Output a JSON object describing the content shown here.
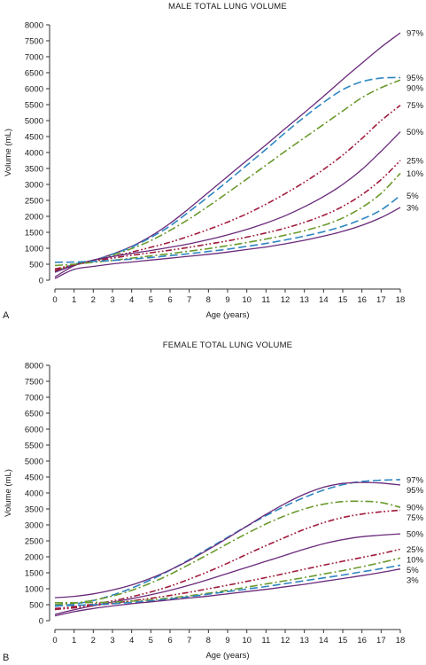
{
  "colors": {
    "solid": "#6a2a7a",
    "blue": "#2e86c1",
    "green": "#6b9a2e",
    "red": "#a01c3c",
    "axis": "#333333"
  },
  "chart_data": [
    {
      "type": "line",
      "panel_label": "A",
      "title": "MALE TOTAL LUNG VOLUME",
      "xlabel": "Age (years)",
      "ylabel": "Volume (mL)",
      "xlim": [
        0,
        18
      ],
      "ylim": [
        0,
        8000
      ],
      "xticks": [
        "0",
        "1",
        "2",
        "3",
        "4",
        "5",
        "6",
        "7",
        "8",
        "9",
        "10",
        "11",
        "12",
        "13",
        "14",
        "15",
        "16",
        "17",
        "18"
      ],
      "yticks": [
        "0",
        "500",
        "1000",
        "1500",
        "2000",
        "2500",
        "3000",
        "3500",
        "4000",
        "4500",
        "5000",
        "5500",
        "6000",
        "6500",
        "7000",
        "7500",
        "8000"
      ],
      "grid": false,
      "x": [
        0,
        1,
        2,
        3,
        4,
        5,
        6,
        7,
        8,
        9,
        10,
        11,
        12,
        13,
        14,
        15,
        16,
        17,
        18
      ],
      "series": [
        {
          "name": "97%",
          "style": "solid",
          "color": "solid",
          "values": [
            100,
            450,
            620,
            820,
            1060,
            1380,
            1780,
            2250,
            2750,
            3250,
            3750,
            4240,
            4750,
            5250,
            5760,
            6290,
            6800,
            7300,
            7750
          ]
        },
        {
          "name": "95%",
          "style": "dash",
          "color": "blue",
          "values": [
            250,
            500,
            620,
            810,
            1040,
            1340,
            1700,
            2150,
            2620,
            3100,
            3600,
            4100,
            4620,
            5110,
            5570,
            5970,
            6220,
            6330,
            6350
          ]
        },
        {
          "name": "90%",
          "style": "dashdot",
          "color": "green",
          "values": [
            300,
            480,
            600,
            780,
            990,
            1240,
            1560,
            1920,
            2320,
            2740,
            3170,
            3600,
            4040,
            4460,
            4880,
            5300,
            5720,
            6030,
            6270
          ]
        },
        {
          "name": "75%",
          "style": "dashdotdot",
          "color": "red",
          "values": [
            300,
            470,
            610,
            740,
            880,
            1030,
            1190,
            1380,
            1590,
            1820,
            2080,
            2380,
            2710,
            3070,
            3470,
            3920,
            4440,
            5000,
            5480
          ]
        },
        {
          "name": "50%",
          "style": "solid",
          "color": "solid",
          "values": [
            250,
            460,
            630,
            740,
            840,
            930,
            1030,
            1140,
            1270,
            1420,
            1590,
            1790,
            2020,
            2300,
            2620,
            3000,
            3470,
            4040,
            4650
          ]
        },
        {
          "name": "25%",
          "style": "dashdotdot",
          "color": "red",
          "values": [
            350,
            480,
            590,
            690,
            780,
            860,
            940,
            1030,
            1130,
            1230,
            1350,
            1480,
            1630,
            1810,
            2030,
            2310,
            2680,
            3150,
            3750
          ]
        },
        {
          "name": "10%",
          "style": "dashdot",
          "color": "green",
          "values": [
            460,
            500,
            560,
            620,
            690,
            760,
            830,
            910,
            990,
            1080,
            1180,
            1290,
            1410,
            1550,
            1720,
            1950,
            2280,
            2720,
            3350
          ]
        },
        {
          "name": "5%",
          "style": "dash",
          "color": "blue",
          "values": [
            560,
            570,
            590,
            620,
            660,
            710,
            770,
            830,
            900,
            970,
            1060,
            1150,
            1260,
            1380,
            1520,
            1690,
            1910,
            2200,
            2650
          ]
        },
        {
          "name": "3%",
          "style": "solid",
          "color": "solid",
          "values": [
            50,
            340,
            430,
            510,
            570,
            630,
            690,
            750,
            810,
            880,
            960,
            1040,
            1140,
            1250,
            1380,
            1530,
            1720,
            1960,
            2280
          ]
        }
      ]
    },
    {
      "type": "line",
      "panel_label": "B",
      "title": "FEMALE TOTAL LUNG VOLUME",
      "xlabel": "Age (years)",
      "ylabel": "Volume (mL)",
      "xlim": [
        0,
        18
      ],
      "ylim": [
        0,
        8000
      ],
      "xticks": [
        "0",
        "1",
        "2",
        "3",
        "4",
        "5",
        "6",
        "7",
        "8",
        "9",
        "10",
        "11",
        "12",
        "13",
        "14",
        "15",
        "16",
        "17",
        "18"
      ],
      "yticks": [
        "0",
        "500",
        "1000",
        "1500",
        "2000",
        "2500",
        "3000",
        "3500",
        "4000",
        "4500",
        "5000",
        "5500",
        "6000",
        "6500",
        "7000",
        "7500",
        "8000"
      ],
      "grid": false,
      "x": [
        0,
        1,
        2,
        3,
        4,
        5,
        6,
        7,
        8,
        9,
        10,
        11,
        12,
        13,
        14,
        15,
        16,
        17,
        18
      ],
      "series": [
        {
          "name": "97%",
          "style": "dash",
          "color": "blue",
          "values": [
            450,
            520,
            630,
            800,
            1020,
            1280,
            1580,
            1910,
            2260,
            2610,
            2960,
            3290,
            3590,
            3860,
            4090,
            4260,
            4360,
            4400,
            4420
          ]
        },
        {
          "name": "95%",
          "style": "solid",
          "color": "solid",
          "values": [
            720,
            760,
            840,
            960,
            1120,
            1330,
            1590,
            1890,
            2230,
            2590,
            2960,
            3330,
            3670,
            3960,
            4180,
            4300,
            4330,
            4310,
            4250
          ]
        },
        {
          "name": "90%",
          "style": "dashdot",
          "color": "green",
          "values": [
            500,
            550,
            640,
            770,
            950,
            1180,
            1450,
            1760,
            2080,
            2410,
            2730,
            3030,
            3290,
            3500,
            3650,
            3730,
            3740,
            3700,
            3550
          ]
        },
        {
          "name": "75%",
          "style": "dashdotdot",
          "color": "red",
          "values": [
            380,
            440,
            520,
            620,
            750,
            900,
            1080,
            1300,
            1540,
            1800,
            2080,
            2350,
            2610,
            2860,
            3070,
            3230,
            3340,
            3410,
            3460
          ]
        },
        {
          "name": "50%",
          "style": "solid",
          "color": "solid",
          "values": [
            200,
            340,
            470,
            580,
            690,
            810,
            950,
            1110,
            1290,
            1480,
            1670,
            1860,
            2050,
            2240,
            2410,
            2540,
            2630,
            2680,
            2720
          ]
        },
        {
          "name": "25%",
          "style": "dashdotdot",
          "color": "red",
          "values": [
            350,
            400,
            470,
            540,
            620,
            700,
            790,
            890,
            1000,
            1110,
            1230,
            1350,
            1480,
            1610,
            1740,
            1860,
            1980,
            2100,
            2240
          ]
        },
        {
          "name": "10%",
          "style": "dashdot",
          "color": "green",
          "values": [
            560,
            560,
            570,
            580,
            610,
            650,
            710,
            780,
            860,
            950,
            1050,
            1150,
            1250,
            1350,
            1460,
            1570,
            1690,
            1820,
            1960
          ]
        },
        {
          "name": "5%",
          "style": "dash",
          "color": "blue",
          "values": [
            470,
            480,
            500,
            530,
            570,
            620,
            680,
            750,
            830,
            910,
            990,
            1070,
            1160,
            1250,
            1340,
            1430,
            1530,
            1630,
            1740
          ]
        },
        {
          "name": "3%",
          "style": "solid",
          "color": "solid",
          "values": [
            150,
            280,
            380,
            460,
            530,
            590,
            650,
            710,
            770,
            840,
            910,
            980,
            1060,
            1140,
            1230,
            1320,
            1410,
            1510,
            1620
          ]
        }
      ]
    }
  ]
}
